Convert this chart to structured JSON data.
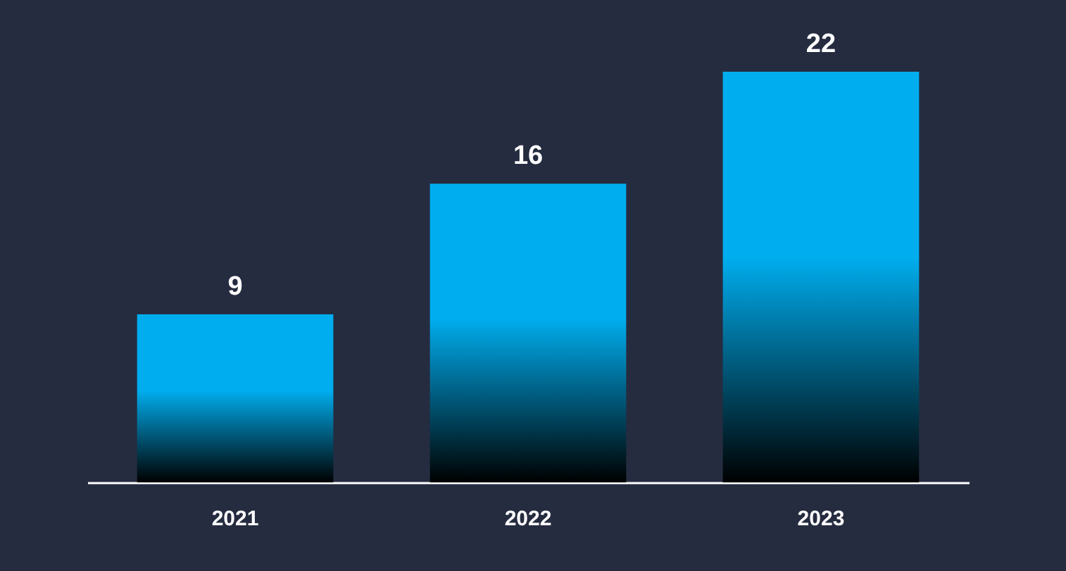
{
  "chart_data": {
    "type": "bar",
    "categories": [
      "2021",
      "2022",
      "2023"
    ],
    "values": [
      9,
      16,
      22
    ],
    "color": "#00aeef",
    "data_labels": true
  }
}
